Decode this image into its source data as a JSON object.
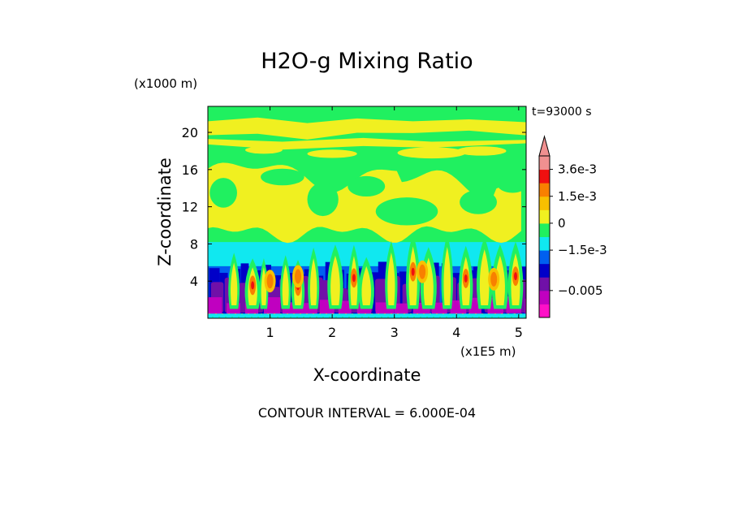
{
  "chart_data": {
    "type": "heatmap",
    "title": "H2O-g Mixing Ratio",
    "time_label": "t=93000 s",
    "x_axis": {
      "label": "X-coordinate",
      "scale_label": "(x1E5 m)",
      "range": [
        0,
        5.12
      ],
      "ticks": [
        1,
        2,
        3,
        4,
        5
      ],
      "tick_labels": [
        "1",
        "2",
        "3",
        "4",
        "5"
      ]
    },
    "y_axis": {
      "label": "Z-coordinate",
      "scale_label": "(x1000 m)",
      "range": [
        0,
        22.8
      ],
      "ticks": [
        4,
        8,
        12,
        16,
        20
      ],
      "tick_labels": [
        "4",
        "8",
        "12",
        "16",
        "20"
      ]
    },
    "colorbar": {
      "levels": [
        {
          "color": "#ff10c8"
        },
        {
          "color": "#c000c0"
        },
        {
          "color": "#7010a8"
        },
        {
          "color": "#0000c8"
        },
        {
          "color": "#0060f0"
        },
        {
          "color": "#10e8f0"
        },
        {
          "color": "#20f060"
        },
        {
          "color": "#f0f020"
        },
        {
          "color": "#f8c000"
        },
        {
          "color": "#f88000"
        },
        {
          "color": "#f01010"
        },
        {
          "color": "#f09090"
        }
      ],
      "labels": [
        {
          "text": "3.6e-3",
          "value": 0.0036
        },
        {
          "text": "1.5e-3",
          "value": 0.0015
        },
        {
          "text": "0",
          "value": 0
        },
        {
          "text": "−1.5e-3",
          "value": -0.0015
        },
        {
          "text": "−0.005",
          "value": -0.005
        }
      ],
      "extend": "max"
    },
    "layers_by_height": [
      {
        "z_range": [
          0,
          1.5
        ],
        "dominant": "purple/magenta"
      },
      {
        "z_range": [
          1.5,
          5.5
        ],
        "dominant": "purple/blue"
      },
      {
        "z_range": [
          5.5,
          8.2
        ],
        "dominant": "cyan"
      },
      {
        "z_range": [
          8.2,
          22.8
        ],
        "dominant": "green/yellow"
      }
    ],
    "footer": "CONTOUR INTERVAL = 6.000E-04"
  }
}
